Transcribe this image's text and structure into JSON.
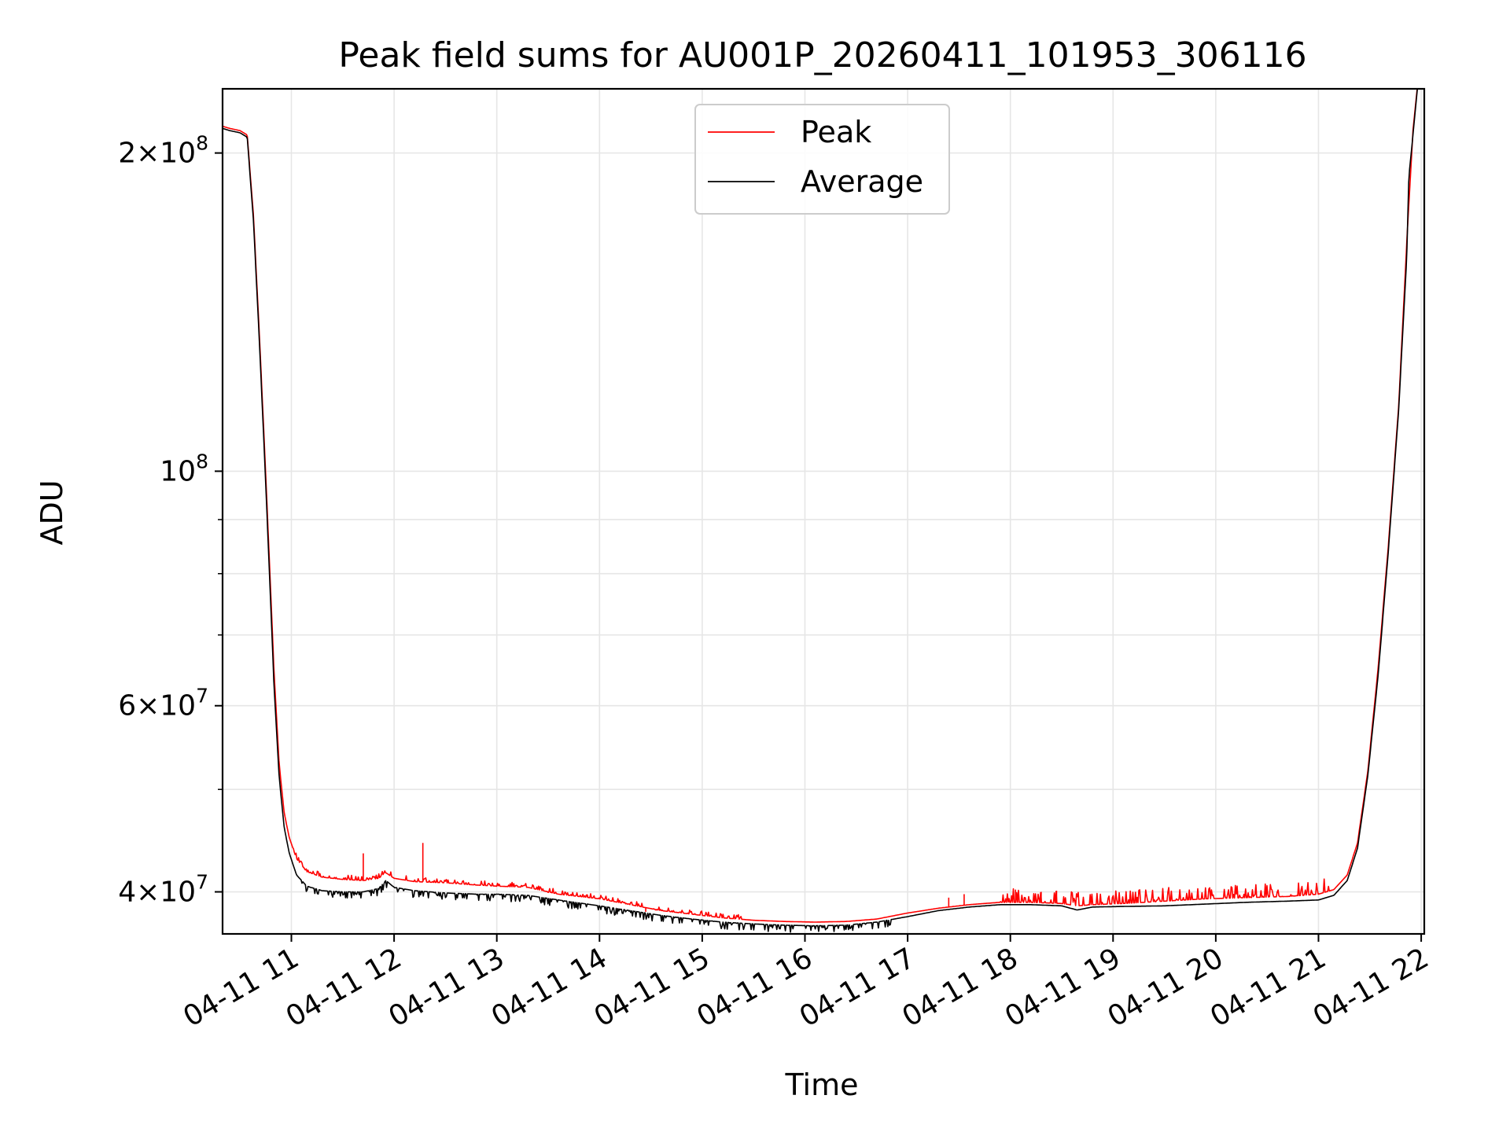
{
  "chart_data": {
    "type": "line",
    "title": "Peak field sums for AU001P_20260411_101953_306116",
    "xlabel": "Time",
    "ylabel": "ADU",
    "yscale": "log",
    "xlim_hours": [
      10.33,
      22.03
    ],
    "ylim": [
      36500000,
      230000000
    ],
    "x_ticks": [
      {
        "hour": 11,
        "label": "04-11 11"
      },
      {
        "hour": 12,
        "label": "04-11 12"
      },
      {
        "hour": 13,
        "label": "04-11 13"
      },
      {
        "hour": 14,
        "label": "04-11 14"
      },
      {
        "hour": 15,
        "label": "04-11 15"
      },
      {
        "hour": 16,
        "label": "04-11 16"
      },
      {
        "hour": 17,
        "label": "04-11 17"
      },
      {
        "hour": 18,
        "label": "04-11 18"
      },
      {
        "hour": 19,
        "label": "04-11 19"
      },
      {
        "hour": 20,
        "label": "04-11 20"
      },
      {
        "hour": 21,
        "label": "04-11 21"
      },
      {
        "hour": 22,
        "label": "04-11 22"
      }
    ],
    "y_major_ticks": [
      {
        "value": 40000000,
        "mantissa": "4×10",
        "exp": "7"
      },
      {
        "value": 60000000,
        "mantissa": "6×10",
        "exp": "7"
      },
      {
        "value": 100000000,
        "mantissa": "10",
        "exp": "8"
      },
      {
        "value": 200000000,
        "mantissa": "2×10",
        "exp": "8"
      }
    ],
    "y_minor_ticks": [
      50000000,
      70000000,
      80000000,
      90000000
    ],
    "legend": {
      "location": "upper center",
      "entries": [
        {
          "label": "Peak",
          "color": "#ff0000"
        },
        {
          "label": "Average",
          "color": "#000000"
        }
      ]
    },
    "series": [
      {
        "name": "Peak",
        "color": "#ff0000",
        "points": [
          [
            10.33,
            212000000
          ],
          [
            10.4,
            211000000
          ],
          [
            10.5,
            210000000
          ],
          [
            10.57,
            208000000
          ],
          [
            10.63,
            175000000
          ],
          [
            10.68,
            140000000
          ],
          [
            10.73,
            110000000
          ],
          [
            10.78,
            85000000
          ],
          [
            10.83,
            65000000
          ],
          [
            10.88,
            53000000
          ],
          [
            10.93,
            47500000
          ],
          [
            10.98,
            45000000
          ],
          [
            11.05,
            43000000
          ],
          [
            11.15,
            41800000
          ],
          [
            11.3,
            41300000
          ],
          [
            11.5,
            41100000
          ],
          [
            11.7,
            41000000
          ],
          [
            11.85,
            41200000
          ],
          [
            11.92,
            41700000
          ],
          [
            12.0,
            41200000
          ],
          [
            12.2,
            40900000
          ],
          [
            12.5,
            40800000
          ],
          [
            12.8,
            40600000
          ],
          [
            13.0,
            40500000
          ],
          [
            13.3,
            40400000
          ],
          [
            13.6,
            39800000
          ],
          [
            14.0,
            39400000
          ],
          [
            14.3,
            38900000
          ],
          [
            14.6,
            38400000
          ],
          [
            14.9,
            38100000
          ],
          [
            15.2,
            37800000
          ],
          [
            15.5,
            37600000
          ],
          [
            15.8,
            37500000
          ],
          [
            16.1,
            37450000
          ],
          [
            16.4,
            37500000
          ],
          [
            16.7,
            37700000
          ],
          [
            17.0,
            38200000
          ],
          [
            17.3,
            38600000
          ],
          [
            17.6,
            38900000
          ],
          [
            17.9,
            39100000
          ],
          [
            18.2,
            39100000
          ],
          [
            18.5,
            39000000
          ],
          [
            18.65,
            38800000
          ],
          [
            18.8,
            38900000
          ],
          [
            19.1,
            39000000
          ],
          [
            19.5,
            39200000
          ],
          [
            19.9,
            39400000
          ],
          [
            20.3,
            39500000
          ],
          [
            20.7,
            39600000
          ],
          [
            21.0,
            39800000
          ],
          [
            21.15,
            40200000
          ],
          [
            21.28,
            41500000
          ],
          [
            21.38,
            44500000
          ],
          [
            21.48,
            52000000
          ],
          [
            21.58,
            65000000
          ],
          [
            21.68,
            85000000
          ],
          [
            21.78,
            115000000
          ],
          [
            21.86,
            165000000
          ],
          [
            21.92,
            210000000
          ],
          [
            21.97,
            235000000
          ]
        ],
        "spikes": [
          [
            11.7,
            43500000
          ],
          [
            12.28,
            44500000
          ],
          [
            13.5,
            39900000
          ],
          [
            13.88,
            39700000
          ],
          [
            14.45,
            38300000
          ],
          [
            14.55,
            38400000
          ],
          [
            14.7,
            38400000
          ],
          [
            14.75,
            38300000
          ],
          [
            17.4,
            39500000
          ],
          [
            17.55,
            39800000
          ],
          [
            18.05,
            40200000
          ],
          [
            18.3,
            40000000
          ],
          [
            18.45,
            40100000
          ]
        ],
        "noise_band": [
          [
            11.0,
            15.4,
            1.01
          ],
          [
            17.9,
            21.1,
            1.03
          ]
        ]
      },
      {
        "name": "Average",
        "color": "#000000",
        "points": [
          [
            10.33,
            211000000
          ],
          [
            10.4,
            210000000
          ],
          [
            10.5,
            209000000
          ],
          [
            10.57,
            207000000
          ],
          [
            10.63,
            173000000
          ],
          [
            10.68,
            138000000
          ],
          [
            10.73,
            108000000
          ],
          [
            10.78,
            83000000
          ],
          [
            10.83,
            63000000
          ],
          [
            10.88,
            51500000
          ],
          [
            10.93,
            46000000
          ],
          [
            10.98,
            43500000
          ],
          [
            11.05,
            41500000
          ],
          [
            11.15,
            40500000
          ],
          [
            11.3,
            40100000
          ],
          [
            11.5,
            40000000
          ],
          [
            11.7,
            40000000
          ],
          [
            11.85,
            40300000
          ],
          [
            11.92,
            41000000
          ],
          [
            12.0,
            40400000
          ],
          [
            12.2,
            40100000
          ],
          [
            12.5,
            39900000
          ],
          [
            12.8,
            39800000
          ],
          [
            13.0,
            39800000
          ],
          [
            13.3,
            39700000
          ],
          [
            13.6,
            39300000
          ],
          [
            14.0,
            38800000
          ],
          [
            14.3,
            38400000
          ],
          [
            14.6,
            38000000
          ],
          [
            14.9,
            37700000
          ],
          [
            15.2,
            37450000
          ],
          [
            15.5,
            37300000
          ],
          [
            15.8,
            37200000
          ],
          [
            16.1,
            37150000
          ],
          [
            16.4,
            37200000
          ],
          [
            16.7,
            37450000
          ],
          [
            17.0,
            37900000
          ],
          [
            17.3,
            38400000
          ],
          [
            17.6,
            38700000
          ],
          [
            17.9,
            38900000
          ],
          [
            18.2,
            38900000
          ],
          [
            18.5,
            38800000
          ],
          [
            18.65,
            38450000
          ],
          [
            18.8,
            38700000
          ],
          [
            19.1,
            38750000
          ],
          [
            19.5,
            38800000
          ],
          [
            19.9,
            38950000
          ],
          [
            20.3,
            39100000
          ],
          [
            20.7,
            39200000
          ],
          [
            21.0,
            39300000
          ],
          [
            21.15,
            39700000
          ],
          [
            21.28,
            41000000
          ],
          [
            21.38,
            44000000
          ],
          [
            21.48,
            51500000
          ],
          [
            21.58,
            64000000
          ],
          [
            21.68,
            84000000
          ],
          [
            21.78,
            114000000
          ],
          [
            21.86,
            160000000
          ],
          [
            21.88,
            190000000
          ],
          [
            21.92,
            208000000
          ],
          [
            21.97,
            234000000
          ]
        ],
        "dips": [
          [
            11.1,
            14.3,
            0.985
          ],
          [
            14.3,
            16.9,
            0.985
          ]
        ]
      }
    ]
  }
}
